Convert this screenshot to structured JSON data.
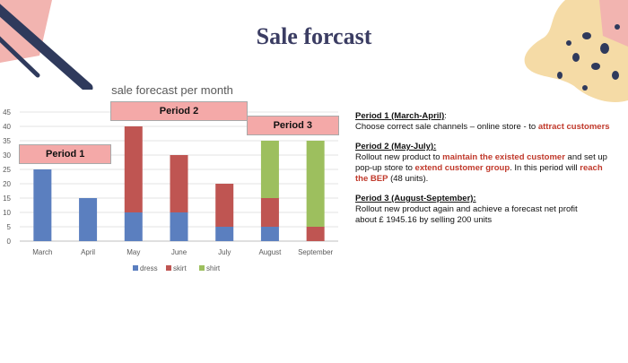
{
  "slide": {
    "title": "Sale forcast",
    "colors": {
      "title": "#3b3d63",
      "accent_red": "#c0392b",
      "dress": "#5b7fbf",
      "skirt": "#bf5552",
      "shirt": "#9dbf5e",
      "period_box": "#f4a9a8"
    }
  },
  "chart_data": {
    "type": "bar",
    "stacked": true,
    "title": "sale forecast per month",
    "xlabel": "",
    "ylabel": "",
    "categories": [
      "March",
      "April",
      "May",
      "June",
      "July",
      "August",
      "September"
    ],
    "series": [
      {
        "name": "dress",
        "color": "#5b7fbf",
        "values": [
          25,
          15,
          10,
          10,
          5,
          5,
          0
        ]
      },
      {
        "name": "skirt",
        "color": "#bf5552",
        "values": [
          0,
          0,
          30,
          20,
          15,
          10,
          5
        ]
      },
      {
        "name": "shirt",
        "color": "#9dbf5e",
        "values": [
          0,
          0,
          0,
          0,
          0,
          20,
          30
        ]
      }
    ],
    "ylim": [
      0,
      45
    ],
    "yticks": [
      0,
      5,
      10,
      15,
      20,
      25,
      30,
      35,
      40,
      45
    ],
    "grid": true,
    "legend": "bottom",
    "annotations": [
      {
        "label": "Period 1",
        "categories": [
          "March",
          "April"
        ]
      },
      {
        "label": "Period 2",
        "categories": [
          "May",
          "June",
          "July"
        ]
      },
      {
        "label": "Period 3",
        "categories": [
          "August",
          "September"
        ]
      }
    ]
  },
  "periods": [
    {
      "heading": "Period 1 (March-April)",
      "heading_suffix": ":",
      "lines": [
        [
          {
            "t": "Choose correct sale channels – online store - to "
          },
          {
            "t": "attract customers",
            "hl": true
          }
        ]
      ]
    },
    {
      "heading": "Period 2 (May-July):",
      "heading_suffix": "",
      "lines": [
        [
          {
            "t": "Rollout new product to "
          },
          {
            "t": "maintain the existed customer",
            "hl": true
          },
          {
            "t": " and set up"
          }
        ],
        [
          {
            "t": "pop-up store to "
          },
          {
            "t": "extend customer group",
            "hl": true
          },
          {
            "t": ". In this period will "
          },
          {
            "t": "reach",
            "hl": true
          }
        ],
        [
          {
            "t": "the BEP",
            "hl": true
          },
          {
            "t": " (48 units)."
          }
        ]
      ]
    },
    {
      "heading": "Period 3 (August-September):",
      "heading_suffix": "",
      "lines": [
        [
          {
            "t": "Rollout new product again and achieve a forecast net profit"
          }
        ],
        [
          {
            "t": "about £ 1945.16 by selling 200 units"
          }
        ]
      ]
    }
  ]
}
